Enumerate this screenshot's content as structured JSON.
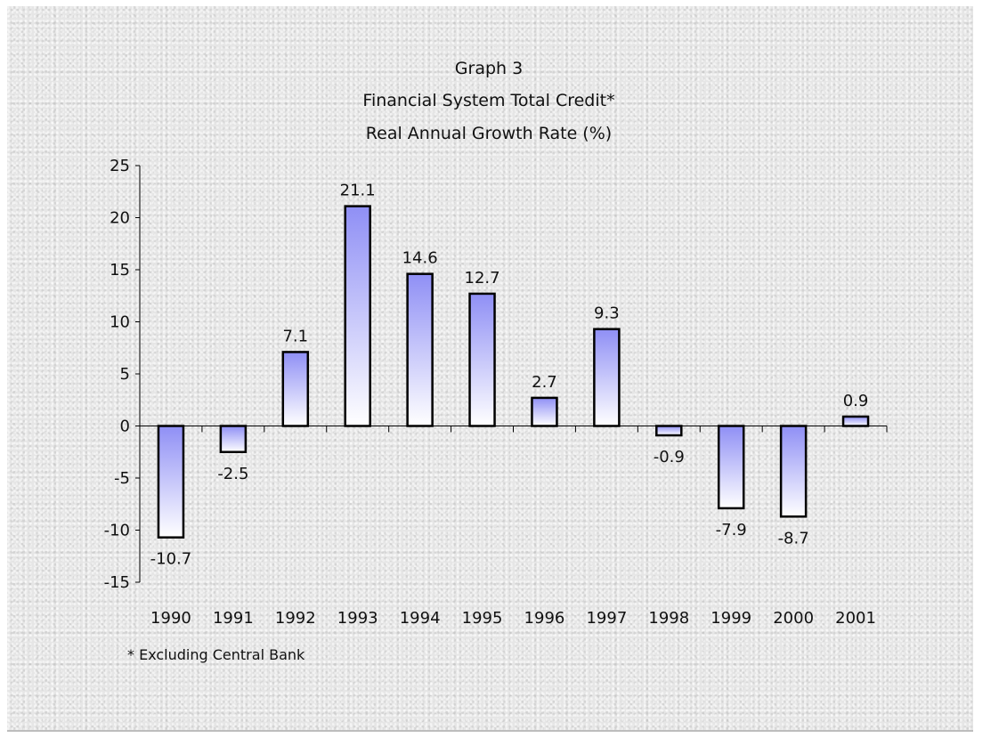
{
  "chart_data": {
    "type": "bar",
    "title": "Graph 3",
    "subtitle_lines": [
      "Financial System Total Credit*",
      "Real Annual Growth Rate (%)"
    ],
    "xlabel": "",
    "ylabel": "",
    "categories": [
      "1990",
      "1991",
      "1992",
      "1993",
      "1994",
      "1995",
      "1996",
      "1997",
      "1998",
      "1999",
      "2000",
      "2001"
    ],
    "values": [
      -10.7,
      -2.5,
      7.1,
      21.1,
      14.6,
      12.7,
      2.7,
      9.3,
      -0.9,
      -7.9,
      -8.7,
      0.9
    ],
    "data_labels": [
      "-10.7",
      "-2.5",
      "7.1",
      "21.1",
      "14.6",
      "12.7",
      "2.7",
      "9.3",
      "-0.9",
      "-7.9",
      "-8.7",
      "0.9"
    ],
    "ylim": [
      -15,
      25
    ],
    "yticks": [
      25,
      20,
      15,
      10,
      5,
      0,
      -5,
      -10,
      -15
    ],
    "grid": false,
    "legend": "none",
    "footnote": "* Excluding Central Bank",
    "bar_color_top": "#8f8ff5",
    "bar_color_bottom": "#ffffff",
    "bar_outline": "#000000"
  }
}
